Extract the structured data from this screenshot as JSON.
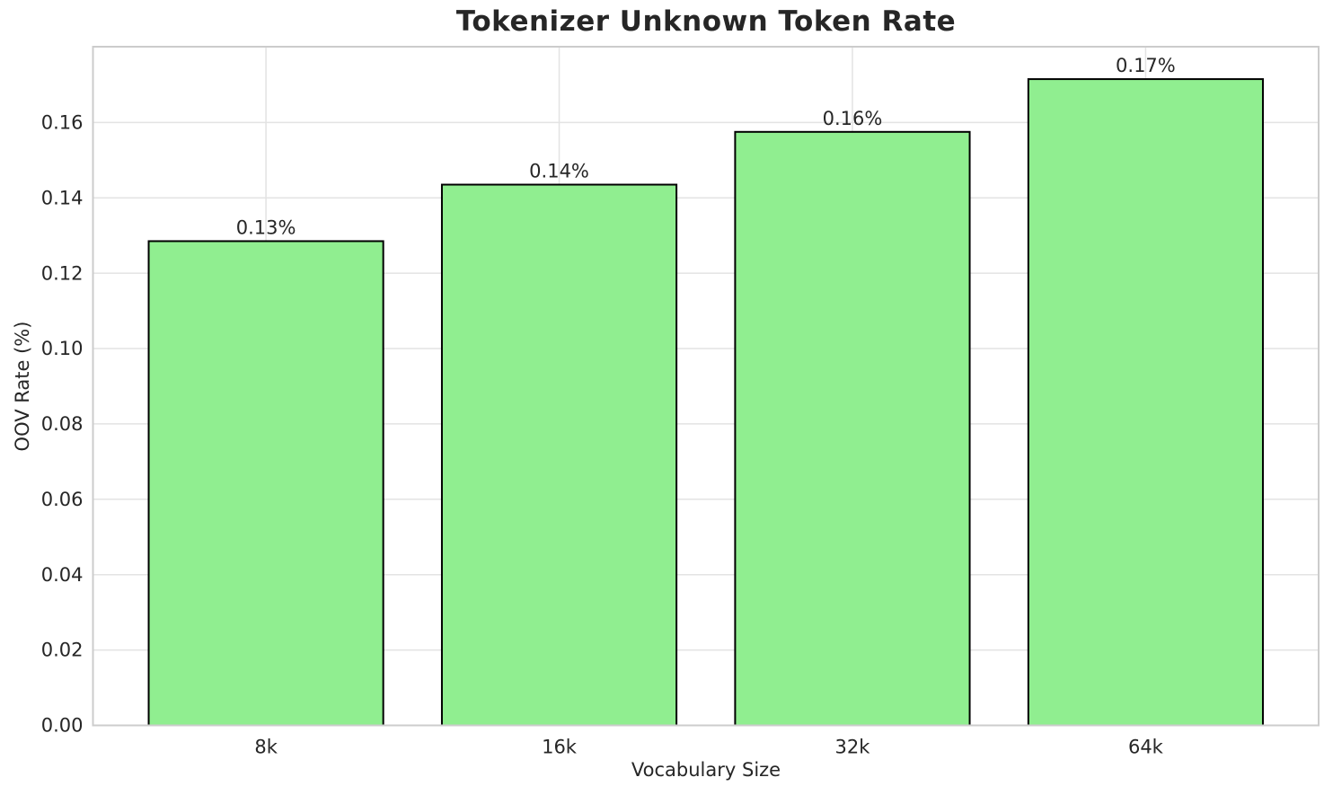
{
  "chart_data": {
    "type": "bar",
    "title": "Tokenizer Unknown Token Rate",
    "xlabel": "Vocabulary Size",
    "ylabel": "OOV Rate (%)",
    "categories": [
      "8k",
      "16k",
      "32k",
      "64k"
    ],
    "values": [
      0.1285,
      0.1435,
      0.1575,
      0.1715
    ],
    "value_labels": [
      "0.13%",
      "0.14%",
      "0.16%",
      "0.17%"
    ],
    "ytick_values": [
      0.0,
      0.02,
      0.04,
      0.06,
      0.08,
      0.1,
      0.12,
      0.14,
      0.16
    ],
    "ytick_labels": [
      "0.00",
      "0.02",
      "0.04",
      "0.06",
      "0.08",
      "0.10",
      "0.12",
      "0.14",
      "0.16"
    ],
    "ylim": [
      0,
      0.1801
    ],
    "xlim": [
      -0.59,
      3.59
    ],
    "bar_width": 0.8,
    "grid": true,
    "legend": null,
    "colors": {
      "bar_fill": "#90EE90",
      "bar_edge": "#000000",
      "grid": "#e3e3e3",
      "spine": "#cccccc",
      "text": "#262626",
      "background": "#ffffff"
    }
  }
}
